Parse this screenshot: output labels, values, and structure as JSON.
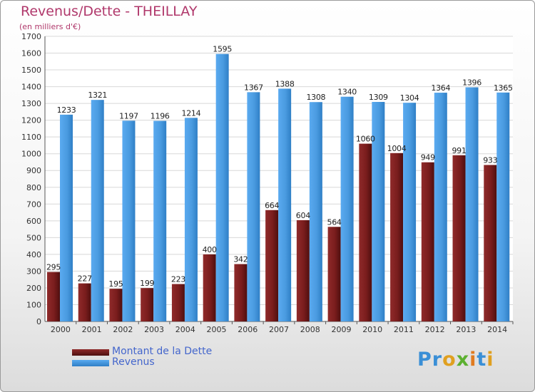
{
  "title": "Revenus/Dette - THEILLAY",
  "subtitle": "(en milliers d'€)",
  "logo": {
    "text": "Proxiti",
    "letters": [
      "P",
      "r",
      "o",
      "x",
      "i",
      "t",
      "i"
    ],
    "colors": [
      "#3a8fd6",
      "#3a8fd6",
      "#e0a020",
      "#5cb030",
      "#e07b20",
      "#3a8fd6",
      "#e0a020"
    ]
  },
  "colors": {
    "dette": "#7a1d1d",
    "revenus": "#4a9be0",
    "title": "#b0386b",
    "legend_text": "#4466cc"
  },
  "chart_data": {
    "type": "bar",
    "title": "Revenus/Dette - THEILLAY",
    "ylabel": "(en milliers d'€)",
    "ylim": [
      0,
      1700
    ],
    "yticks": [
      0,
      100,
      200,
      300,
      400,
      500,
      600,
      700,
      800,
      900,
      1000,
      1100,
      1200,
      1300,
      1400,
      1500,
      1600,
      1700
    ],
    "grid": true,
    "legend_position": "bottom-left",
    "categories": [
      "2000",
      "2001",
      "2002",
      "2003",
      "2004",
      "2005",
      "2006",
      "2007",
      "2008",
      "2009",
      "2010",
      "2011",
      "2012",
      "2013",
      "2014"
    ],
    "series": [
      {
        "name": "Montant de la Dette",
        "values": [
          295,
          227,
          195,
          199,
          223,
          400,
          342,
          664,
          604,
          564,
          1060,
          1004,
          949,
          991,
          933
        ]
      },
      {
        "name": "Revenus",
        "values": [
          1233,
          1321,
          1197,
          1196,
          1214,
          1595,
          1367,
          1388,
          1308,
          1340,
          1309,
          1304,
          1364,
          1396,
          1365
        ]
      }
    ]
  }
}
